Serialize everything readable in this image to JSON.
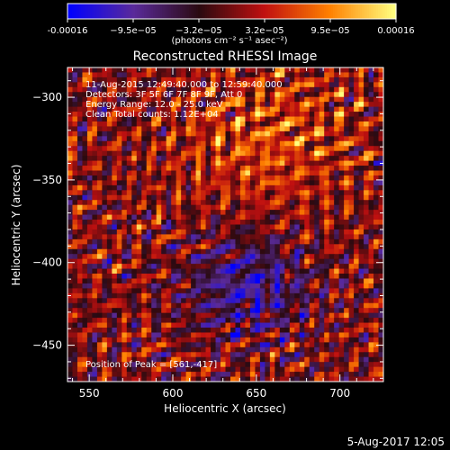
{
  "chart_data": {
    "type": "heatmap",
    "title": "Reconstructed RHESSI Image",
    "xlabel": "Heliocentric X (arcsec)",
    "ylabel": "Heliocentric Y (arcsec)",
    "xlim": [
      537,
      726
    ],
    "ylim": [
      -472,
      -282
    ],
    "xticks": [
      550,
      600,
      650,
      700
    ],
    "yticks": [
      -450,
      -400,
      -350,
      -300
    ],
    "colorbar": {
      "ticks": [
        "-0.00016",
        "−9.5e−05",
        "−3.2e−05",
        "3.2e−05",
        "9.5e−05",
        "0.00016"
      ],
      "unit_label": "(photons cm⁻² s⁻¹ asec⁻²)",
      "min": -0.00016,
      "max": 0.00016
    },
    "annotations": [
      "11-Aug-2015 12:49:40.000 to 12:59:40.000",
      "Detectors: 3F 5F 6F 7F 8F 9F, Att 0",
      "Energy Range: 12.0 - 25.0 keV",
      "Clean     Total counts: 1.12E+04"
    ],
    "peak_label": "Position of Peak = [561,-417]",
    "peak": [
      561,
      -417
    ],
    "colormap": [
      "#0000ff",
      "#5a2a9a",
      "#2a0a10",
      "#c01010",
      "#ff8000",
      "#ffff80"
    ]
  },
  "footer": {
    "timestamp": "5-Aug-2017 12:05"
  }
}
